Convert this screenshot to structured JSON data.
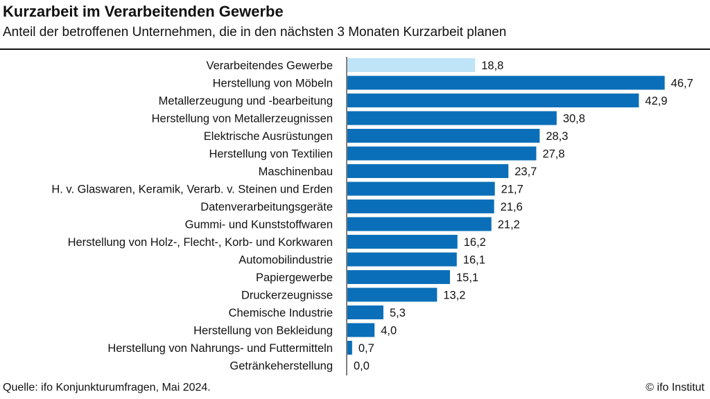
{
  "chart_data": {
    "type": "bar",
    "orientation": "horizontal",
    "title": "Kurzarbeit im Verarbeitenden Gewerbe",
    "subtitle": "Anteil der betroffenen Unternehmen, die in den nächsten 3 Monaten Kurzarbeit planen",
    "categories": [
      "Verarbeitendes Gewerbe",
      "Herstellung von Möbeln",
      "Metallerzeugung und -bearbeitung",
      "Herstellung von Metallerzeugnissen",
      "Elektrische Ausrüstungen",
      "Herstellung von Textilien",
      "Maschinenbau",
      "H. v. Glaswaren, Keramik, Verarb. v. Steinen und Erden",
      "Datenverarbeitungsgeräte",
      "Gummi- und Kunststoffwaren",
      "Herstellung von Holz-, Flecht-, Korb- und Korkwaren",
      "Automobilindustrie",
      "Papiergewerbe",
      "Druckerzeugnisse",
      "Chemische Industrie",
      "Herstellung von Bekleidung",
      "Herstellung von Nahrungs- und Futtermitteln",
      "Getränkeherstellung"
    ],
    "values": [
      18.8,
      46.7,
      42.9,
      30.8,
      28.3,
      27.8,
      23.7,
      21.7,
      21.6,
      21.2,
      16.2,
      16.1,
      15.1,
      13.2,
      5.3,
      4.0,
      0.7,
      0.0
    ],
    "labels": [
      "18,8",
      "46,7",
      "42,9",
      "30,8",
      "28,3",
      "27,8",
      "23,7",
      "21,7",
      "21,6",
      "21,2",
      "16,2",
      "16,1",
      "15,1",
      "13,2",
      "5,3",
      "4,0",
      "0,7",
      "0,0"
    ],
    "highlight_color": "#bfe3f7",
    "bar_color": "#0a6fb8",
    "xlim": [
      0,
      50
    ],
    "grid": false
  },
  "footer": {
    "source": "Quelle: ifo Konjunkturumfragen, Mai 2024.",
    "copyright": "© ifo Institut"
  }
}
